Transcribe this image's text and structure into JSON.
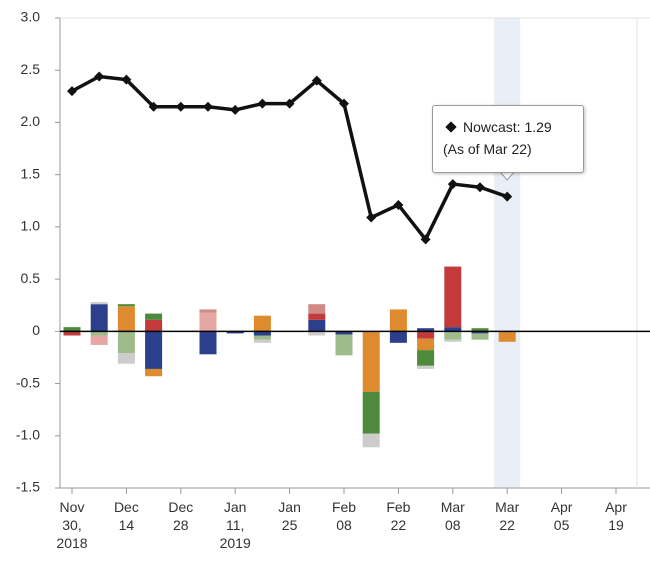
{
  "chart_data": {
    "type": "bar-line",
    "categories": [
      "Nov\n30,\n2018",
      null,
      "Dec\n14",
      null,
      "Dec\n28",
      null,
      "Jan\n11,\n2019",
      null,
      "Jan\n25",
      null,
      "Feb\n08",
      null,
      "Feb\n22",
      null,
      "Mar\n08",
      null,
      "Mar\n22",
      null,
      "Apr\n05",
      null,
      "Apr\n19"
    ],
    "line": {
      "color": "#111111",
      "values": [
        2.3,
        2.44,
        2.41,
        2.15,
        2.15,
        2.15,
        2.12,
        2.18,
        2.18,
        2.4,
        2.18,
        1.09,
        1.21,
        0.88,
        1.41,
        1.38,
        1.29,
        null,
        null,
        null,
        null
      ]
    },
    "series": [
      {
        "color": "#2b3f8c",
        "values": [
          0,
          0.26,
          0,
          -0.36,
          0,
          -0.22,
          -0.02,
          -0.04,
          0,
          0.11,
          -0.03,
          0,
          -0.11,
          0.03,
          0.04,
          -0.02,
          0,
          null,
          null,
          null,
          null
        ]
      },
      {
        "color": "#c23a3b",
        "values": [
          -0.04,
          0,
          0,
          0.11,
          0,
          0,
          0,
          0,
          0,
          0.06,
          0,
          0,
          0,
          -0.07,
          0.58,
          0,
          0,
          null,
          null,
          null,
          null
        ]
      },
      {
        "color": "#de8a2e",
        "values": [
          0,
          0,
          0.24,
          -0.07,
          0,
          0,
          0,
          0.15,
          0,
          0,
          0,
          -0.58,
          0.21,
          -0.11,
          0,
          0,
          -0.1,
          null,
          null,
          null,
          null
        ]
      },
      {
        "color": "#4d8a3c",
        "values": [
          0.04,
          0,
          0.02,
          0.06,
          0,
          0,
          0,
          0,
          0,
          0,
          0,
          -0.4,
          0,
          -0.15,
          0,
          0.03,
          0,
          null,
          null,
          null,
          null
        ]
      },
      {
        "color": "#9dbb8b",
        "values": [
          0,
          -0.04,
          -0.21,
          0,
          0,
          0,
          0,
          -0.04,
          0,
          0,
          -0.2,
          0,
          0,
          0,
          -0.08,
          -0.06,
          0,
          null,
          null,
          null,
          null
        ]
      },
      {
        "color": "#e6a7a2",
        "values": [
          0,
          -0.09,
          0,
          0,
          0,
          0.18,
          0,
          0,
          0,
          0,
          0,
          0,
          0,
          0,
          0,
          0,
          0,
          null,
          null,
          null,
          null
        ]
      },
      {
        "color": "#cf8b85",
        "values": [
          0,
          0,
          0,
          0,
          0,
          0.03,
          0,
          0,
          0,
          0.09,
          0,
          0,
          0,
          0,
          0,
          0,
          0,
          null,
          null,
          null,
          null
        ]
      },
      {
        "color": "#cccccc",
        "values": [
          0,
          0.02,
          -0.1,
          0,
          0,
          0,
          0,
          -0.03,
          0,
          -0.04,
          0,
          -0.13,
          0,
          -0.03,
          -0.02,
          0,
          0,
          null,
          null,
          null,
          null
        ]
      }
    ],
    "ylim": [
      -1.5,
      3
    ],
    "yticks": [
      {
        "value": 3,
        "label": "3.0"
      },
      2.5,
      {
        "value": 2,
        "label": "2.0"
      },
      1.5,
      {
        "value": 1,
        "label": "1.0"
      },
      0.5,
      0,
      -0.5,
      {
        "value": -1,
        "label": "-1.0"
      },
      -1.5
    ],
    "highlight_index": 16,
    "tooltip": {
      "value_text": "Nowcast: 1.29",
      "date_text": "(As of Mar 22)"
    }
  }
}
